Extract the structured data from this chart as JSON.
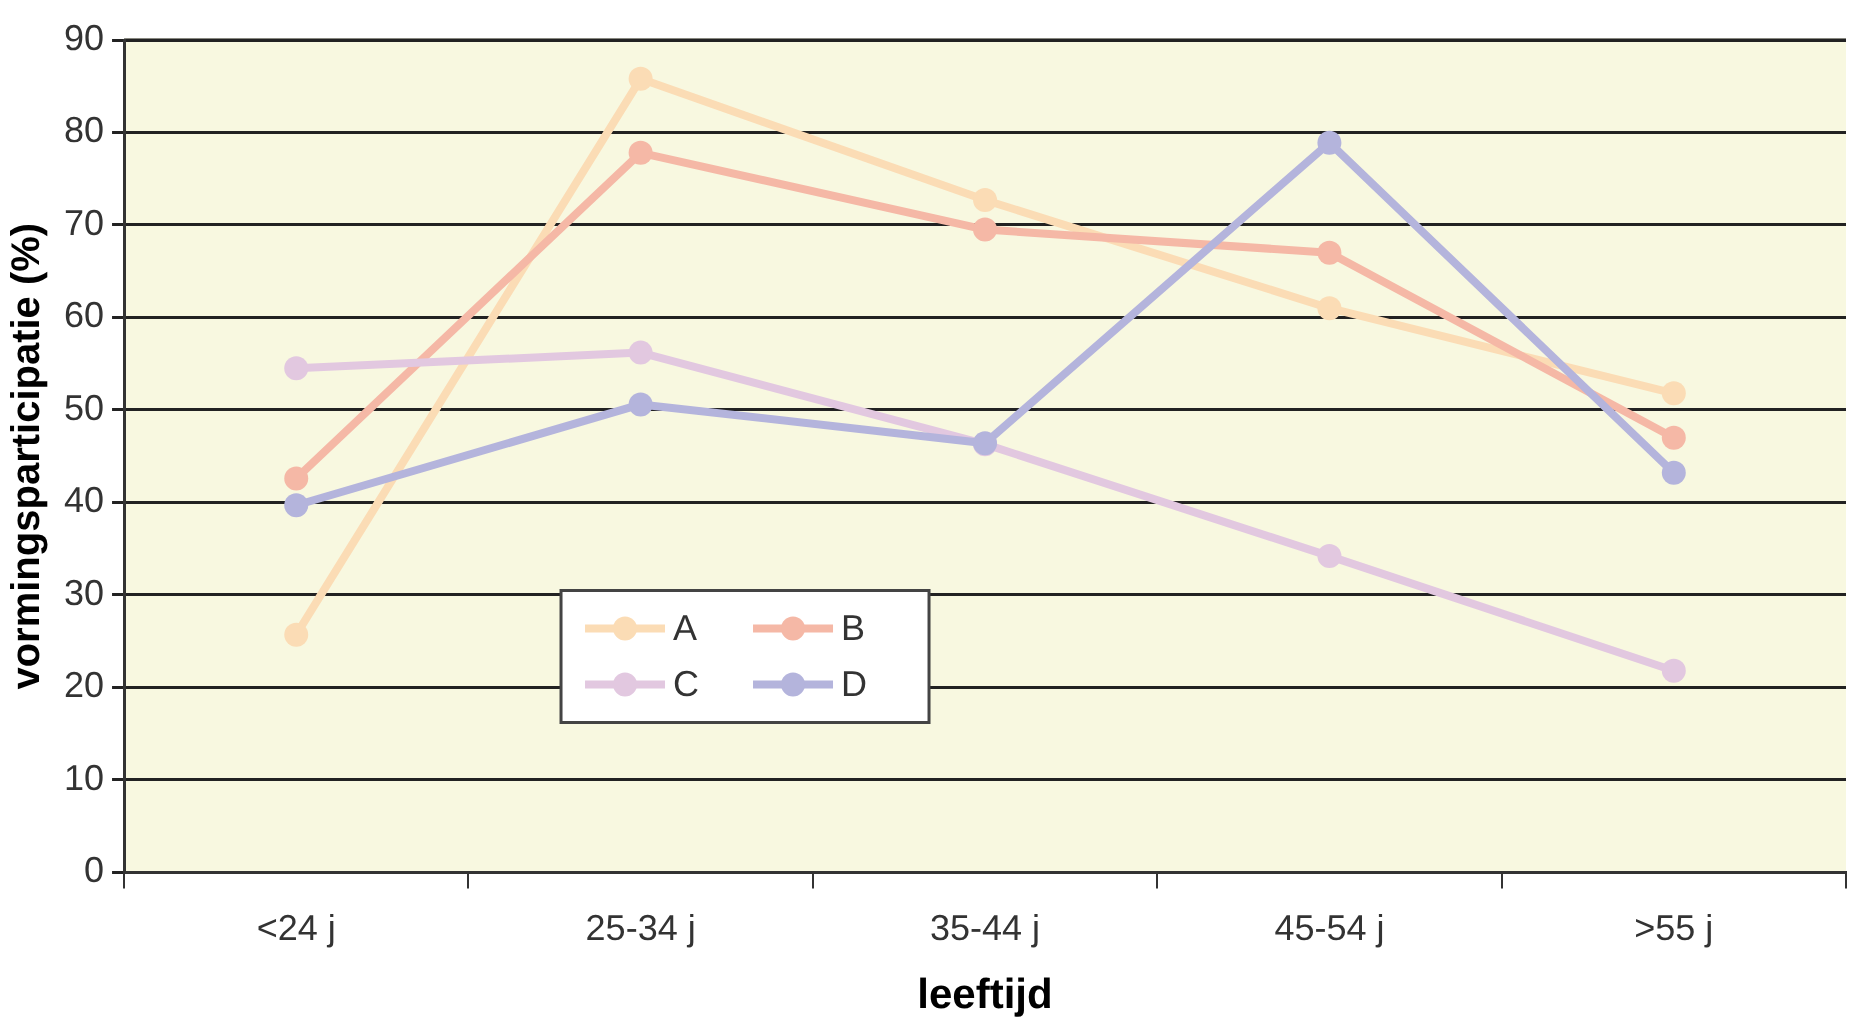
{
  "chart_data": {
    "type": "line",
    "xlabel": "leeftijd",
    "ylabel": "vormingsparticipatie (%)",
    "categories": [
      "<24 j",
      "25-34 j",
      "35-44 j",
      "45-54 j",
      ">55 j"
    ],
    "series": [
      {
        "name": "A",
        "color": "#fbdcb5",
        "values": [
          25.7,
          85.8,
          72.7,
          61,
          51.8
        ]
      },
      {
        "name": "B",
        "color": "#f5b8a6",
        "values": [
          42.6,
          77.8,
          69.5,
          67,
          47
        ]
      },
      {
        "name": "C",
        "color": "#e2c8e0",
        "values": [
          54.5,
          56.2,
          46.3,
          34.2,
          21.8
        ]
      },
      {
        "name": "D",
        "color": "#b4b4dc",
        "values": [
          39.7,
          50.6,
          46.4,
          78.9,
          43.2
        ]
      }
    ],
    "ylim": [
      0,
      90
    ],
    "yticks": [
      0,
      10,
      20,
      30,
      40,
      50,
      60,
      70,
      80,
      90
    ],
    "grid": "y",
    "legend": "bottom",
    "marker": "circle",
    "line_style": "solid"
  }
}
